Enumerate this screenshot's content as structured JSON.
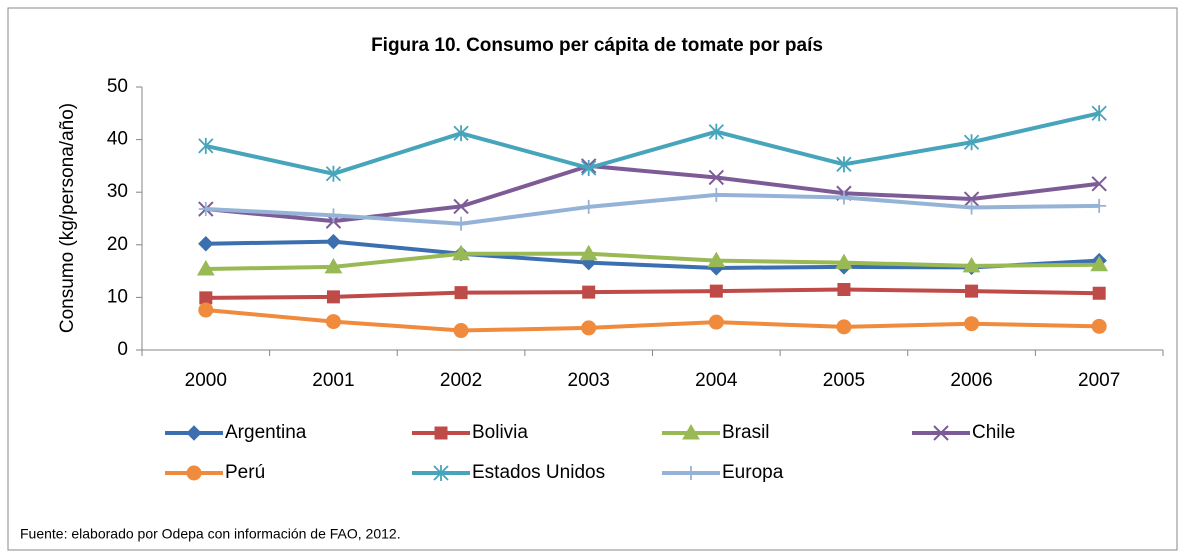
{
  "chart_data": {
    "type": "line",
    "title": "Figura 10. Consumo per cápita de tomate por país",
    "y_label": "Consumo (kg/persona/año)",
    "source": "Fuente: elaborado por Odepa con información de FAO, 2012.",
    "categories": [
      "2000",
      "2001",
      "2002",
      "2003",
      "2004",
      "2005",
      "2006",
      "2007"
    ],
    "ylim": [
      0,
      50
    ],
    "yticks": [
      0,
      10,
      20,
      30,
      40,
      50
    ],
    "grid": false,
    "legend": "bottom",
    "series": [
      {
        "name": "Argentina",
        "color": "#3c6fb0",
        "marker": "diamond",
        "values": [
          20.2,
          20.6,
          18.3,
          16.6,
          15.6,
          15.8,
          15.7,
          17.0
        ]
      },
      {
        "name": "Bolivia",
        "color": "#be4b48",
        "marker": "square",
        "values": [
          9.9,
          10.1,
          10.9,
          11.0,
          11.2,
          11.5,
          11.2,
          10.8
        ]
      },
      {
        "name": "Brasil",
        "color": "#98b954",
        "marker": "triangle",
        "values": [
          15.4,
          15.8,
          18.3,
          18.3,
          17.0,
          16.6,
          16.0,
          16.2
        ]
      },
      {
        "name": "Chile",
        "color": "#7d5b96",
        "marker": "x",
        "values": [
          26.8,
          24.5,
          27.3,
          35.0,
          32.8,
          29.8,
          28.7,
          31.6
        ]
      },
      {
        "name": "Perú",
        "color": "#f08a3c",
        "marker": "circle",
        "values": [
          7.6,
          5.4,
          3.7,
          4.2,
          5.3,
          4.4,
          5.0,
          4.5
        ]
      },
      {
        "name": "Estados Unidos",
        "color": "#46a4bb",
        "marker": "star",
        "values": [
          38.8,
          33.5,
          41.2,
          34.6,
          41.5,
          35.3,
          39.5,
          45.0
        ]
      },
      {
        "name": "Europa",
        "color": "#95b3d7",
        "marker": "plus",
        "values": [
          26.8,
          25.6,
          24.0,
          27.2,
          29.5,
          29.0,
          27.1,
          27.4
        ]
      }
    ]
  }
}
